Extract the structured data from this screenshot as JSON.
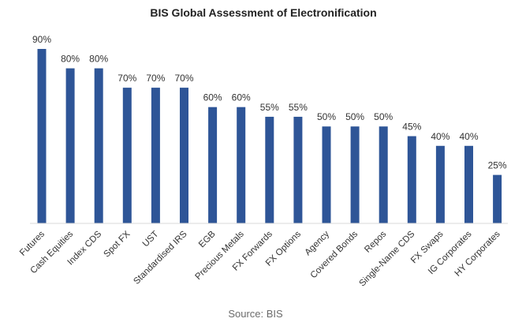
{
  "chart_data": {
    "type": "bar",
    "title": "BIS Global Assessment of Electronification",
    "categories": [
      "Futures",
      "Cash Equities",
      "Index CDS",
      "Spot FX",
      "UST",
      "Standardised IRS",
      "EGB",
      "Precious Metals",
      "FX Forwards",
      "FX Options",
      "Agency",
      "Covered Bonds",
      "Repos",
      "Single-Name CDS",
      "FX Swaps",
      "IG Corporates",
      "HY Corporates"
    ],
    "values": [
      90,
      80,
      80,
      70,
      70,
      70,
      60,
      60,
      55,
      55,
      50,
      50,
      50,
      45,
      40,
      40,
      25
    ],
    "data_labels": [
      "90%",
      "80%",
      "80%",
      "70%",
      "70%",
      "70%",
      "60%",
      "60%",
      "55%",
      "55%",
      "50%",
      "50%",
      "50%",
      "45%",
      "40%",
      "40%",
      "25%"
    ],
    "ylim": [
      0,
      90
    ],
    "grid": false,
    "bar_color": "#2E5597"
  },
  "source": "Source: BIS"
}
